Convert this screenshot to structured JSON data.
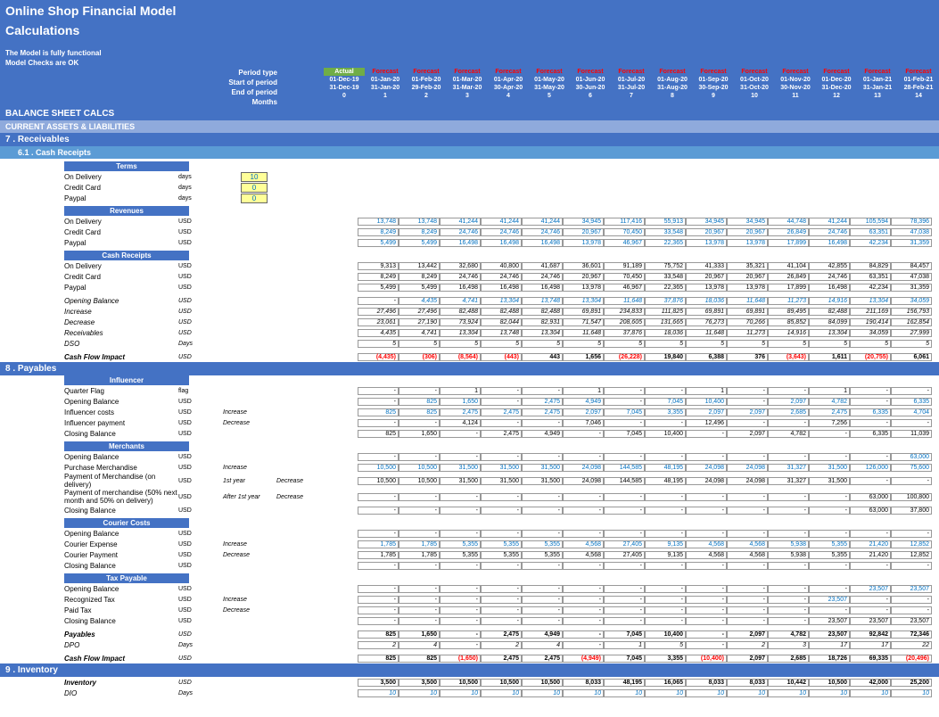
{
  "title": "Online Shop Financial Model",
  "subtitle": "Calculations",
  "info1": "The Model is fully functional",
  "info2": "Model Checks are OK",
  "period_labels": [
    "Period type",
    "Start of period",
    "End of period",
    "Months"
  ],
  "periods": [
    {
      "type": "Actual",
      "start": "01-Dec-19",
      "end": "31-Dec-19",
      "month": "0"
    },
    {
      "type": "Forecast",
      "start": "01-Jan-20",
      "end": "31-Jan-20",
      "month": "1"
    },
    {
      "type": "Forecast",
      "start": "01-Feb-20",
      "end": "29-Feb-20",
      "month": "2"
    },
    {
      "type": "Forecast",
      "start": "01-Mar-20",
      "end": "31-Mar-20",
      "month": "3"
    },
    {
      "type": "Forecast",
      "start": "01-Apr-20",
      "end": "30-Apr-20",
      "month": "4"
    },
    {
      "type": "Forecast",
      "start": "01-May-20",
      "end": "31-May-20",
      "month": "5"
    },
    {
      "type": "Forecast",
      "start": "01-Jun-20",
      "end": "30-Jun-20",
      "month": "6"
    },
    {
      "type": "Forecast",
      "start": "01-Jul-20",
      "end": "31-Jul-20",
      "month": "7"
    },
    {
      "type": "Forecast",
      "start": "01-Aug-20",
      "end": "31-Aug-20",
      "month": "8"
    },
    {
      "type": "Forecast",
      "start": "01-Sep-20",
      "end": "30-Sep-20",
      "month": "9"
    },
    {
      "type": "Forecast",
      "start": "01-Oct-20",
      "end": "31-Oct-20",
      "month": "10"
    },
    {
      "type": "Forecast",
      "start": "01-Nov-20",
      "end": "30-Nov-20",
      "month": "11"
    },
    {
      "type": "Forecast",
      "start": "01-Dec-20",
      "end": "31-Dec-20",
      "month": "12"
    },
    {
      "type": "Forecast",
      "start": "01-Jan-21",
      "end": "31-Jan-21",
      "month": "13"
    },
    {
      "type": "Forecast",
      "start": "01-Feb-21",
      "end": "28-Feb-21",
      "month": "14"
    }
  ],
  "sections": {
    "balance_sheet": "BALANCE SHEET CALCS",
    "current_assets": "CURRENT ASSETS & LIABILITIES",
    "receivables": "7 . Receivables",
    "cash_receipts": "6.1 . Cash Receipts",
    "payables": "8 . Payables",
    "inventory": "9 . Inventory"
  },
  "groups": {
    "terms": "Terms",
    "revenues": "Revenues",
    "cash_receipts": "Cash Receipts",
    "influencer": "Influencer",
    "merchants": "Merchants",
    "courier": "Courier Costs",
    "tax": "Tax Payable"
  },
  "terms": [
    {
      "label": "On Delivery",
      "unit": "days",
      "value": "10"
    },
    {
      "label": "Credit Card",
      "unit": "days",
      "value": "0"
    },
    {
      "label": "Paypal",
      "unit": "days",
      "value": "0"
    }
  ],
  "revenues": [
    {
      "label": "On Delivery",
      "unit": "USD",
      "data": [
        "",
        "13,748",
        "13,748",
        "41,244",
        "41,244",
        "41,244",
        "34,945",
        "117,416",
        "55,913",
        "34,945",
        "34,945",
        "44,748",
        "41,244",
        "105,594",
        "78,396"
      ],
      "blue": true
    },
    {
      "label": "Credit Card",
      "unit": "USD",
      "data": [
        "",
        "8,249",
        "8,249",
        "24,746",
        "24,746",
        "24,746",
        "20,967",
        "70,450",
        "33,548",
        "20,967",
        "20,967",
        "26,849",
        "24,746",
        "63,351",
        "47,038"
      ],
      "blue": true
    },
    {
      "label": "Paypal",
      "unit": "USD",
      "data": [
        "",
        "5,499",
        "5,499",
        "16,498",
        "16,498",
        "16,498",
        "13,978",
        "46,967",
        "22,365",
        "13,978",
        "13,978",
        "17,899",
        "16,498",
        "42,234",
        "31,359"
      ],
      "blue": true
    }
  ],
  "cash_receipts": [
    {
      "label": "On Delivery",
      "unit": "USD",
      "data": [
        "",
        "9,313",
        "13,442",
        "32,680",
        "40,800",
        "41,687",
        "36,601",
        "91,189",
        "75,752",
        "41,333",
        "35,321",
        "41,104",
        "42,855",
        "84,829",
        "84,457"
      ]
    },
    {
      "label": "Credit Card",
      "unit": "USD",
      "data": [
        "",
        "8,249",
        "8,249",
        "24,746",
        "24,746",
        "24,746",
        "20,967",
        "70,450",
        "33,548",
        "20,967",
        "20,967",
        "26,849",
        "24,746",
        "63,351",
        "47,038"
      ]
    },
    {
      "label": "Paypal",
      "unit": "USD",
      "data": [
        "",
        "5,499",
        "5,499",
        "16,498",
        "16,498",
        "16,498",
        "13,978",
        "46,967",
        "22,365",
        "13,978",
        "13,978",
        "17,899",
        "16,498",
        "42,234",
        "31,359"
      ]
    }
  ],
  "balance_rows": [
    {
      "label": "Opening Balance",
      "unit": "USD",
      "italic": true,
      "data": [
        "",
        "-",
        "4,435",
        "4,741",
        "13,304",
        "13,748",
        "13,304",
        "11,648",
        "37,876",
        "18,036",
        "11,648",
        "11,273",
        "14,916",
        "13,304",
        "34,059"
      ],
      "blue": true
    },
    {
      "label": "Increase",
      "unit": "USD",
      "italic": true,
      "data": [
        "",
        "27,496",
        "27,496",
        "82,488",
        "82,488",
        "82,488",
        "69,891",
        "234,833",
        "111,825",
        "69,891",
        "69,891",
        "89,495",
        "82,488",
        "211,169",
        "156,793"
      ]
    },
    {
      "label": "Decrease",
      "unit": "USD",
      "italic": true,
      "data": [
        "",
        "23,061",
        "27,190",
        "73,924",
        "82,044",
        "82,931",
        "71,547",
        "208,605",
        "131,665",
        "76,273",
        "70,266",
        "85,852",
        "84,099",
        "190,414",
        "162,854"
      ]
    },
    {
      "label": "Receivables",
      "unit": "USD",
      "italic": true,
      "data": [
        "",
        "4,435",
        "4,741",
        "13,304",
        "13,748",
        "13,304",
        "11,648",
        "37,876",
        "18,036",
        "11,648",
        "11,273",
        "14,916",
        "13,304",
        "34,059",
        "27,999"
      ]
    },
    {
      "label": "DSO",
      "unit": "Days",
      "italic": true,
      "data": [
        "",
        "5",
        "5",
        "5",
        "5",
        "5",
        "5",
        "5",
        "5",
        "5",
        "5",
        "5",
        "5",
        "5",
        "5"
      ]
    }
  ],
  "cash_flow_impact_1": {
    "label": "Cash Flow Impact",
    "unit": "USD",
    "data": [
      "",
      "(4,435)",
      "(306)",
      "(8,564)",
      "(443)",
      "443",
      "1,656",
      "(26,228)",
      "19,840",
      "6,388",
      "376",
      "(3,643)",
      "1,611",
      "(20,755)",
      "6,061"
    ],
    "bold": true
  },
  "influencer": [
    {
      "label": "Quarter Flag",
      "unit": "flag",
      "data": [
        "",
        "-",
        "-",
        "1",
        "-",
        "-",
        "1",
        "-",
        "-",
        "1",
        "-",
        "-",
        "1",
        "-",
        "-"
      ]
    },
    {
      "label": "Opening Balance",
      "unit": "USD",
      "data": [
        "",
        "-",
        "825",
        "1,650",
        "-",
        "2,475",
        "4,949",
        "-",
        "7,045",
        "10,400",
        "-",
        "2,097",
        "4,782",
        "-",
        "6,335"
      ],
      "blue": true
    },
    {
      "label": "Influencer costs",
      "unit": "USD",
      "note": "Increase",
      "data": [
        "",
        "825",
        "825",
        "2,475",
        "2,475",
        "2,475",
        "2,097",
        "7,045",
        "3,355",
        "2,097",
        "2,097",
        "2,685",
        "2,475",
        "6,335",
        "4,704"
      ],
      "blue": true
    },
    {
      "label": "Influencer payment",
      "unit": "USD",
      "note": "Decrease",
      "data": [
        "",
        "-",
        "-",
        "4,124",
        "-",
        "-",
        "7,046",
        "-",
        "-",
        "12,496",
        "-",
        "-",
        "7,256",
        "-",
        "-"
      ]
    },
    {
      "label": "Closing Balance",
      "unit": "USD",
      "data": [
        "",
        "825",
        "1,650",
        "-",
        "2,475",
        "4,949",
        "-",
        "7,045",
        "10,400",
        "-",
        "2,097",
        "4,782",
        "-",
        "6,335",
        "11,039"
      ]
    }
  ],
  "merchants": [
    {
      "label": "Opening Balance",
      "unit": "USD",
      "data": [
        "",
        "-",
        "-",
        "-",
        "-",
        "-",
        "-",
        "-",
        "-",
        "-",
        "-",
        "-",
        "-",
        "-",
        "63,000"
      ],
      "blue": true
    },
    {
      "label": "Purchase Merchandise",
      "unit": "USD",
      "note": "Increase",
      "data": [
        "",
        "10,500",
        "10,500",
        "31,500",
        "31,500",
        "31,500",
        "24,098",
        "144,585",
        "48,195",
        "24,098",
        "24,098",
        "31,327",
        "31,500",
        "126,000",
        "75,600"
      ],
      "blue": true
    },
    {
      "label": "Payment of Merchandise (on delivery)",
      "unit": "USD",
      "note": "1st year",
      "note2": "Decrease",
      "data": [
        "",
        "10,500",
        "10,500",
        "31,500",
        "31,500",
        "31,500",
        "24,098",
        "144,585",
        "48,195",
        "24,098",
        "24,098",
        "31,327",
        "31,500",
        "-",
        "-"
      ]
    },
    {
      "label": "Payment of merchandise (50% next month and 50% on delivery)",
      "unit": "USD",
      "note": "After 1st year",
      "note2": "Decrease",
      "data": [
        "",
        "-",
        "-",
        "-",
        "-",
        "-",
        "-",
        "-",
        "-",
        "-",
        "-",
        "-",
        "-",
        "63,000",
        "100,800"
      ]
    },
    {
      "label": "Closing Balance",
      "unit": "USD",
      "data": [
        "",
        "-",
        "-",
        "-",
        "-",
        "-",
        "-",
        "-",
        "-",
        "-",
        "-",
        "-",
        "-",
        "63,000",
        "37,800"
      ]
    }
  ],
  "courier": [
    {
      "label": "Opening Balance",
      "unit": "USD",
      "data": [
        "",
        "-",
        "-",
        "-",
        "-",
        "-",
        "-",
        "-",
        "-",
        "-",
        "-",
        "-",
        "-",
        "-",
        "-"
      ],
      "blue": true
    },
    {
      "label": "Courier Expense",
      "unit": "USD",
      "note": "Increase",
      "data": [
        "",
        "1,785",
        "1,785",
        "5,355",
        "5,355",
        "5,355",
        "4,568",
        "27,405",
        "9,135",
        "4,568",
        "4,568",
        "5,938",
        "5,355",
        "21,420",
        "12,852"
      ],
      "blue": true
    },
    {
      "label": "Courier Payment",
      "unit": "USD",
      "note": "Decrease",
      "data": [
        "",
        "1,785",
        "1,785",
        "5,355",
        "5,355",
        "5,355",
        "4,568",
        "27,405",
        "9,135",
        "4,568",
        "4,568",
        "5,938",
        "5,355",
        "21,420",
        "12,852"
      ]
    },
    {
      "label": "Closing Balance",
      "unit": "USD",
      "data": [
        "",
        "-",
        "-",
        "-",
        "-",
        "-",
        "-",
        "-",
        "-",
        "-",
        "-",
        "-",
        "-",
        "-",
        "-"
      ]
    }
  ],
  "tax": [
    {
      "label": "Opening Balance",
      "unit": "USD",
      "data": [
        "",
        "-",
        "-",
        "-",
        "-",
        "-",
        "-",
        "-",
        "-",
        "-",
        "-",
        "-",
        "-",
        "23,507",
        "23,507"
      ],
      "blue": true
    },
    {
      "label": "Recognized Tax",
      "unit": "USD",
      "note": "Increase",
      "data": [
        "",
        "-",
        "-",
        "-",
        "-",
        "-",
        "-",
        "-",
        "-",
        "-",
        "-",
        "-",
        "23,507",
        "-",
        "-"
      ],
      "blue": true
    },
    {
      "label": "Paid Tax",
      "unit": "USD",
      "note": "Decrease",
      "data": [
        "",
        "-",
        "-",
        "-",
        "-",
        "-",
        "-",
        "-",
        "-",
        "-",
        "-",
        "-",
        "-",
        "-",
        "-"
      ],
      "blue": true
    },
    {
      "label": "Closing Balance",
      "unit": "USD",
      "data": [
        "",
        "-",
        "-",
        "-",
        "-",
        "-",
        "-",
        "-",
        "-",
        "-",
        "-",
        "-",
        "23,507",
        "23,507",
        "23,507"
      ]
    }
  ],
  "payables_summary": [
    {
      "label": "Payables",
      "unit": "USD",
      "bold": true,
      "data": [
        "",
        "825",
        "1,650",
        "-",
        "2,475",
        "4,949",
        "-",
        "7,045",
        "10,400",
        "-",
        "2,097",
        "4,782",
        "23,507",
        "92,842",
        "72,346"
      ]
    },
    {
      "label": "DPO",
      "unit": "Days",
      "italic": true,
      "data": [
        "",
        "2",
        "4",
        "-",
        "2",
        "4",
        "-",
        "1",
        "5",
        "-",
        "2",
        "3",
        "17",
        "17",
        "22"
      ]
    }
  ],
  "cash_flow_impact_2": {
    "label": "Cash Flow Impact",
    "unit": "USD",
    "bold": true,
    "data": [
      "",
      "825",
      "825",
      "(1,650)",
      "2,475",
      "2,475",
      "(4,949)",
      "7,045",
      "3,355",
      "(10,400)",
      "2,097",
      "2,685",
      "18,726",
      "69,335",
      "(20,496)"
    ]
  },
  "inventory": [
    {
      "label": "Inventory",
      "unit": "USD",
      "bold": true,
      "data": [
        "",
        "3,500",
        "3,500",
        "10,500",
        "10,500",
        "10,500",
        "8,033",
        "48,195",
        "16,065",
        "8,033",
        "8,033",
        "10,442",
        "10,500",
        "42,000",
        "25,200"
      ]
    },
    {
      "label": "DIO",
      "unit": "Days",
      "italic": true,
      "data": [
        "",
        "10",
        "10",
        "10",
        "10",
        "10",
        "10",
        "10",
        "10",
        "10",
        "10",
        "10",
        "10",
        "10",
        "10"
      ],
      "blue": true
    }
  ]
}
